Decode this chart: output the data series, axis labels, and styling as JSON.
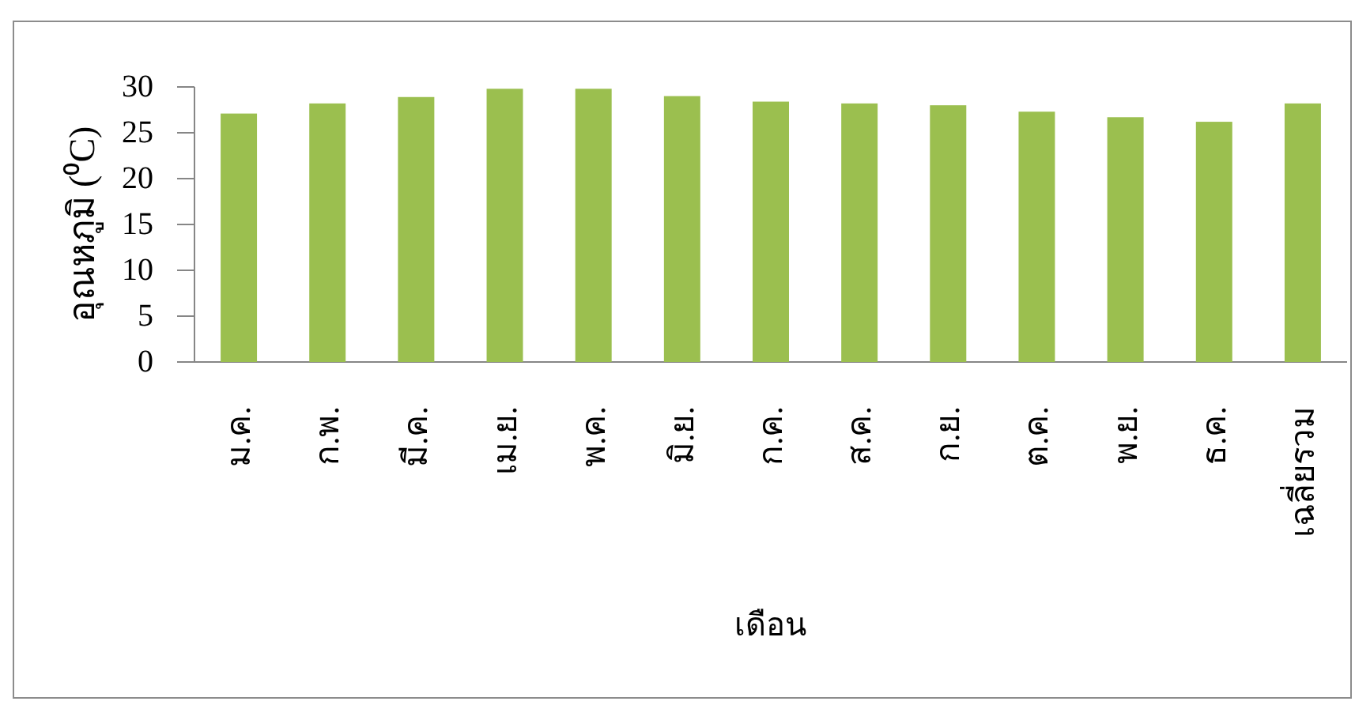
{
  "chart_data": {
    "type": "bar",
    "categories": [
      "ม.ค.",
      "ก.พ.",
      "มี.ค.",
      "เม.ย.",
      "พ.ค.",
      "มิ.ย.",
      "ก.ค.",
      "ส.ค.",
      "ก.ย.",
      "ต.ค.",
      "พ.ย.",
      "ธ.ค.",
      "เฉลี่ยรวม"
    ],
    "values": [
      27.1,
      28.2,
      28.9,
      29.8,
      29.8,
      29.0,
      28.4,
      28.2,
      28.0,
      27.3,
      26.7,
      26.2,
      28.2
    ],
    "color": "#9bbf4f",
    "xlabel": "เดือน",
    "ylabel": "อุณหภูมิ (⁰C)",
    "ylim": [
      0,
      30
    ],
    "yticks": [
      0,
      5,
      10,
      15,
      20,
      25,
      30
    ],
    "grid": false
  }
}
